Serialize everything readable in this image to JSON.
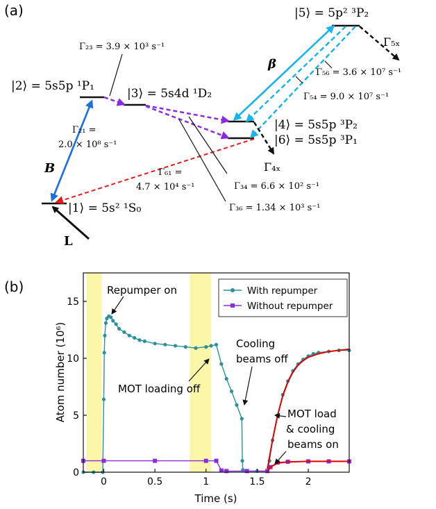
{
  "panel_a": {
    "label": "(a)",
    "levels": [
      {
        "id": "L5",
        "text": "|5⟩ = 5p² ³P₂"
      },
      {
        "id": "L2",
        "text": "|2⟩ = 5s5p ¹P₁"
      },
      {
        "id": "L3",
        "text": "|3⟩ = 5s4d ¹D₂"
      },
      {
        "id": "L4",
        "text": "|4⟩ = 5s5p ³P₂"
      },
      {
        "id": "L6",
        "text": "|6⟩ = 5s5p ³P₁"
      },
      {
        "id": "L1",
        "text": "|1⟩ = 5s² ¹S₀"
      }
    ],
    "beams": {
      "B": "B",
      "beta": "β",
      "L": "L"
    },
    "rates": {
      "g23": "Γ₂₃ = 3.9 × 10³ s⁻¹",
      "g21_a": "Γ₂₁ =",
      "g21_b": "2.0 × 10⁸ s⁻¹",
      "g61_a": "Γ₆₁ =",
      "g61_b": "4.7 × 10⁴ s⁻¹",
      "g34": "Γ₃₄ = 6.6 × 10² s⁻¹",
      "g36": "Γ₃₆ = 1.34 × 10³ s⁻¹",
      "g56": "Γ₅₆ = 3.6 × 10⁷ s⁻¹",
      "g54": "Γ₅₄ = 9.0 × 10⁷ s⁻¹",
      "g5x": "Γ₅ₓ",
      "g4x": "Γ₄ₓ"
    }
  },
  "chart_data": {
    "type": "scatter",
    "panel_label": "(b)",
    "xlabel": "Time (s)",
    "ylabel": "Atom number (10⁶)",
    "xlim": [
      -0.2,
      2.4
    ],
    "ylim": [
      0,
      17.5
    ],
    "xticks": [
      0,
      0.5,
      1,
      1.5,
      2
    ],
    "xtick_labels": [
      "0",
      "0.5",
      "1",
      "1.5",
      "2"
    ],
    "yticks": [
      0,
      5,
      10,
      15
    ],
    "ytick_labels": [
      "0",
      "5",
      "10",
      "15"
    ],
    "grid": false,
    "legend_position": "top-right",
    "highlight_intervals": [
      [
        -0.17,
        -0.02
      ],
      [
        0.84,
        1.05
      ]
    ],
    "series": [
      {
        "name": "With repumper",
        "color": "#2a8f9f",
        "marker": "circle",
        "x": [
          -0.2,
          -0.1,
          -0.01,
          0.0,
          0.005,
          0.01,
          0.02,
          0.03,
          0.05,
          0.07,
          0.09,
          0.12,
          0.15,
          0.2,
          0.25,
          0.3,
          0.35,
          0.4,
          0.5,
          0.6,
          0.7,
          0.8,
          0.9,
          1.0,
          1.05,
          1.1,
          1.15,
          1.2,
          1.25,
          1.3,
          1.35,
          1.355,
          1.36,
          1.4,
          1.5,
          1.6,
          1.62,
          1.65,
          1.7,
          1.75,
          1.8,
          1.85,
          1.9,
          1.95,
          2.0,
          2.05,
          2.1,
          2.2,
          2.3,
          2.4
        ],
        "y": [
          0,
          0,
          0,
          6.4,
          10.5,
          12.0,
          13.1,
          13.5,
          13.7,
          13.6,
          13.3,
          13.0,
          12.6,
          12.3,
          12.0,
          11.8,
          11.6,
          11.5,
          11.3,
          11.2,
          11.1,
          11.0,
          10.9,
          11.0,
          11.1,
          11.2,
          9.5,
          8.2,
          7.1,
          5.9,
          4.7,
          1.0,
          0.2,
          0.1,
          0.1,
          0.1,
          1.0,
          2.8,
          5.0,
          6.8,
          8.0,
          8.9,
          9.5,
          9.9,
          10.2,
          10.4,
          10.5,
          10.6,
          10.7,
          10.7
        ]
      },
      {
        "name": "Without repumper",
        "color": "#8a2be2",
        "marker": "square",
        "x": [
          -0.2,
          0.0,
          0.5,
          1.0,
          1.1,
          1.15,
          1.2,
          1.4,
          1.6,
          1.63,
          1.7,
          1.8,
          2.0,
          2.2,
          2.4
        ],
        "y": [
          1.0,
          1.0,
          1.0,
          1.0,
          1.0,
          0.15,
          0.1,
          0.1,
          0.1,
          0.45,
          0.85,
          0.92,
          0.95,
          0.95,
          0.95
        ]
      },
      {
        "name": "",
        "color": "#dd0000",
        "marker": "none",
        "x": [
          1.6,
          1.65,
          1.7,
          1.75,
          1.8,
          1.85,
          1.9,
          1.95,
          2.0,
          2.1,
          2.2,
          2.3,
          2.4
        ],
        "y": [
          0.3,
          2.8,
          5.0,
          6.7,
          7.9,
          8.8,
          9.4,
          9.8,
          10.1,
          10.4,
          10.6,
          10.7,
          10.8
        ]
      },
      {
        "name": "",
        "color": "#dd0000",
        "marker": "none",
        "x": [
          1.6,
          1.63,
          1.7,
          1.8,
          2.0,
          2.2,
          2.4
        ],
        "y": [
          0.1,
          0.45,
          0.8,
          0.9,
          0.95,
          0.95,
          0.95
        ]
      }
    ],
    "annotations": [
      {
        "id": "repumper",
        "text": "Repumper on",
        "x": 0.07,
        "y": 13.7
      },
      {
        "id": "motoff",
        "text": "MOT loading off",
        "x": 1.05,
        "y": 11.0
      },
      {
        "id": "cooloff_1",
        "text": "Cooling",
        "x": 1.33,
        "y": 5.5
      },
      {
        "id": "cooloff_2",
        "text": "beams off",
        "x": 1.33,
        "y": 5.5
      },
      {
        "id": "moton_1",
        "text": "MOT load",
        "x": 1.63,
        "y": 0.5
      },
      {
        "id": "moton_2",
        "text": "& cooling",
        "x": 1.63,
        "y": 0.5
      },
      {
        "id": "moton_3",
        "text": "beams on",
        "x": 1.63,
        "y": 0.5
      }
    ]
  }
}
